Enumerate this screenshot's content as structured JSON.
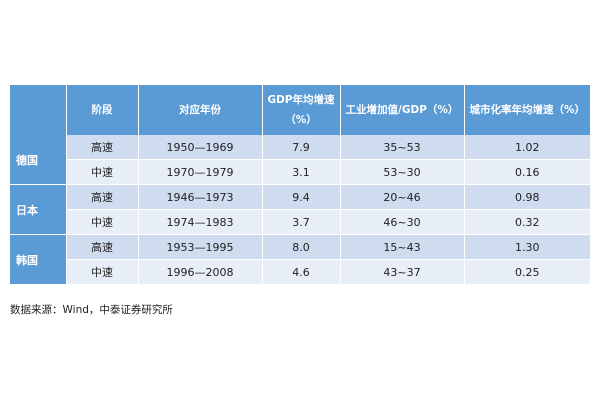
{
  "table": {
    "headers": {
      "blank": "",
      "stage": "阶段",
      "years": "对应年份",
      "gdp": "GDP年均增速（%）",
      "industry": "工业增加值/GDP（%）",
      "urban": "城市化率年均增速（%）"
    },
    "groups": [
      {
        "country": "德国",
        "rows": [
          {
            "stage": "高速",
            "years": "1950—1969",
            "gdp": "7.9",
            "industry": "35~53",
            "urban": "1.02"
          },
          {
            "stage": "中速",
            "years": "1970—1979",
            "gdp": "3.1",
            "industry": "53~30",
            "urban": "0.16"
          }
        ]
      },
      {
        "country": "日本",
        "rows": [
          {
            "stage": "高速",
            "years": "1946—1973",
            "gdp": "9.4",
            "industry": "20~46",
            "urban": "0.98"
          },
          {
            "stage": "中速",
            "years": "1974—1983",
            "gdp": "3.7",
            "industry": "46~30",
            "urban": "0.32"
          }
        ]
      },
      {
        "country": "韩国",
        "rows": [
          {
            "stage": "高速",
            "years": "1953—1995",
            "gdp": "8.0",
            "industry": "15~43",
            "urban": "1.30"
          },
          {
            "stage": "中速",
            "years": "1996—2008",
            "gdp": "4.6",
            "industry": "43~37",
            "urban": "0.25"
          }
        ]
      }
    ]
  },
  "source": "数据来源：Wind，中泰证券研究所",
  "colors": {
    "header_bg": "#5b9bd5",
    "band_dark": "#cfdcef",
    "band_light": "#e8eef7"
  }
}
